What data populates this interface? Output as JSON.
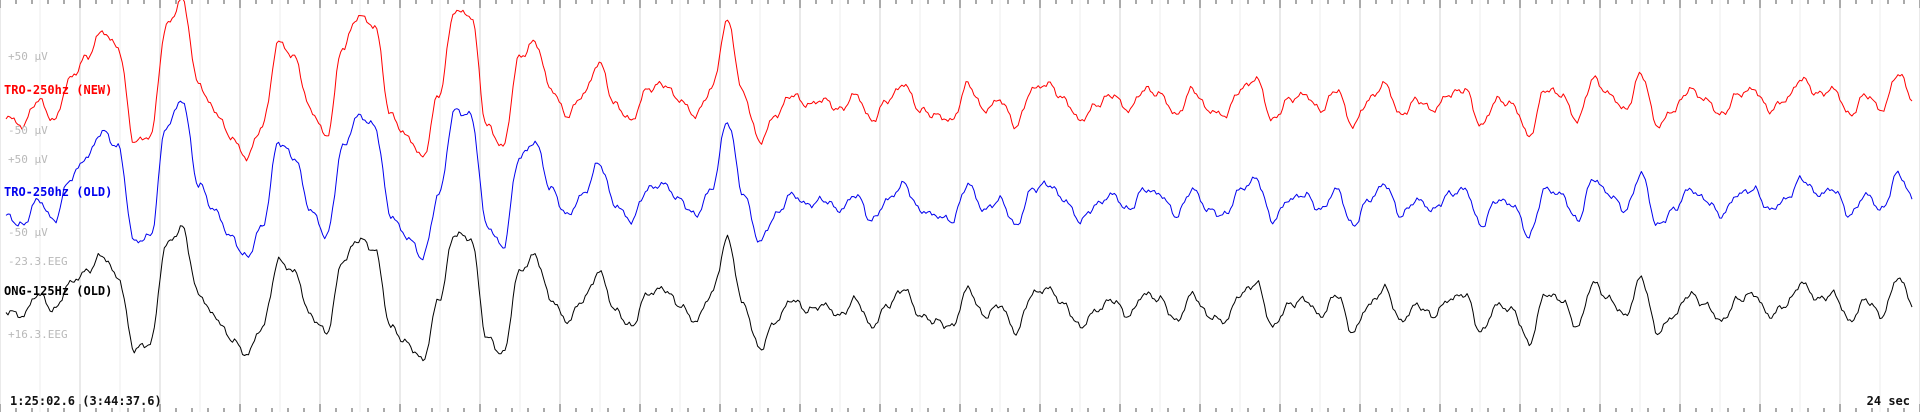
{
  "chart_data": {
    "type": "line",
    "title": "",
    "xlabel": "",
    "ylabel": "",
    "window_seconds": 24,
    "grid": true,
    "start_time": "1:25:02.6 (3:44:37.6)",
    "duration_label": "24 sec",
    "channels": [
      {
        "name": "TRO-250hz (NEW)",
        "color": "#ff0000",
        "scale_top": "+50 µV",
        "scale_bottom": "-50 µV",
        "units": "µV",
        "range": [
          -50,
          50
        ],
        "samples_per_sec": 5,
        "values": [
          -10,
          -20,
          5,
          -15,
          25,
          45,
          70,
          55,
          -35,
          -30,
          75,
          100,
          20,
          -5,
          -30,
          -50,
          -20,
          60,
          45,
          -5,
          -30,
          55,
          85,
          75,
          -10,
          -30,
          -50,
          10,
          90,
          85,
          -20,
          -40,
          45,
          60,
          15,
          -10,
          10,
          40,
          0,
          -15,
          15,
          20,
          5,
          -10,
          15,
          80,
          10,
          -35,
          -10,
          10,
          0,
          5,
          -5,
          10,
          -15,
          5,
          20,
          -5,
          -10,
          -15,
          20,
          -5,
          5,
          -20,
          15,
          20,
          5,
          -15,
          0,
          10,
          -5,
          15,
          10,
          -10,
          15,
          -5,
          -10,
          15,
          25,
          -15,
          5,
          10,
          -5,
          15,
          -20,
          5,
          20,
          -10,
          5,
          -5,
          10,
          15,
          -20,
          5,
          0,
          -30,
          15,
          10,
          -15,
          25,
          10,
          -5,
          30,
          -20,
          -5,
          15,
          5,
          -10,
          10,
          15,
          -5,
          5,
          25,
          10,
          15,
          -10,
          10,
          -5,
          30,
          5
        ]
      },
      {
        "name": "TRO-250hz (OLD)",
        "color": "#0000ee",
        "scale_top": "+50 µV",
        "scale_bottom": "-50 µV",
        "units": "µV",
        "range": [
          -50,
          50
        ],
        "samples_per_sec": 5,
        "values": [
          -10,
          -20,
          5,
          -15,
          25,
          45,
          70,
          55,
          -35,
          -30,
          75,
          100,
          20,
          -5,
          -30,
          -50,
          -20,
          60,
          45,
          -5,
          -30,
          55,
          85,
          75,
          -10,
          -30,
          -50,
          10,
          90,
          85,
          -20,
          -40,
          45,
          60,
          15,
          -10,
          10,
          40,
          0,
          -15,
          15,
          20,
          5,
          -10,
          15,
          80,
          10,
          -35,
          -10,
          10,
          0,
          5,
          -5,
          10,
          -15,
          5,
          20,
          -5,
          -10,
          -15,
          20,
          -5,
          5,
          -20,
          15,
          20,
          5,
          -15,
          0,
          10,
          -5,
          15,
          10,
          -10,
          15,
          -5,
          -10,
          15,
          25,
          -15,
          5,
          10,
          -5,
          15,
          -20,
          5,
          20,
          -10,
          5,
          -5,
          10,
          15,
          -20,
          5,
          0,
          -30,
          15,
          10,
          -15,
          25,
          10,
          -5,
          30,
          -20,
          -5,
          15,
          5,
          -10,
          10,
          15,
          -5,
          5,
          25,
          10,
          15,
          -10,
          10,
          -5,
          30,
          5
        ]
      },
      {
        "name": "ONG-125Hz (OLD)",
        "color": "#000000",
        "scale_top": "-23.3.EEG",
        "scale_bottom": "+16.3.EEG",
        "units": ".EEG",
        "range": [
          -23.3,
          16.3
        ],
        "samples_per_sec": 5,
        "values": [
          -5,
          -10,
          10,
          -5,
          20,
          30,
          45,
          25,
          -40,
          -35,
          55,
          70,
          10,
          -10,
          -30,
          -45,
          -20,
          40,
          30,
          -10,
          -25,
          40,
          60,
          50,
          -20,
          -35,
          -50,
          5,
          65,
          60,
          -30,
          -45,
          30,
          45,
          5,
          -15,
          5,
          30,
          -5,
          -20,
          10,
          15,
          0,
          -15,
          10,
          60,
          0,
          -40,
          -15,
          5,
          -5,
          0,
          -10,
          5,
          -20,
          0,
          15,
          -10,
          -15,
          -20,
          15,
          -10,
          0,
          -25,
          10,
          15,
          0,
          -20,
          -5,
          5,
          -10,
          10,
          5,
          -15,
          10,
          -10,
          -15,
          10,
          20,
          -20,
          0,
          5,
          -10,
          10,
          -25,
          0,
          15,
          -15,
          0,
          -10,
          5,
          10,
          -25,
          0,
          -5,
          -35,
          10,
          5,
          -20,
          20,
          5,
          -10,
          25,
          -25,
          -10,
          10,
          0,
          -15,
          5,
          10,
          -10,
          0,
          20,
          5,
          10,
          -15,
          5,
          -10,
          25,
          0
        ]
      }
    ]
  }
}
